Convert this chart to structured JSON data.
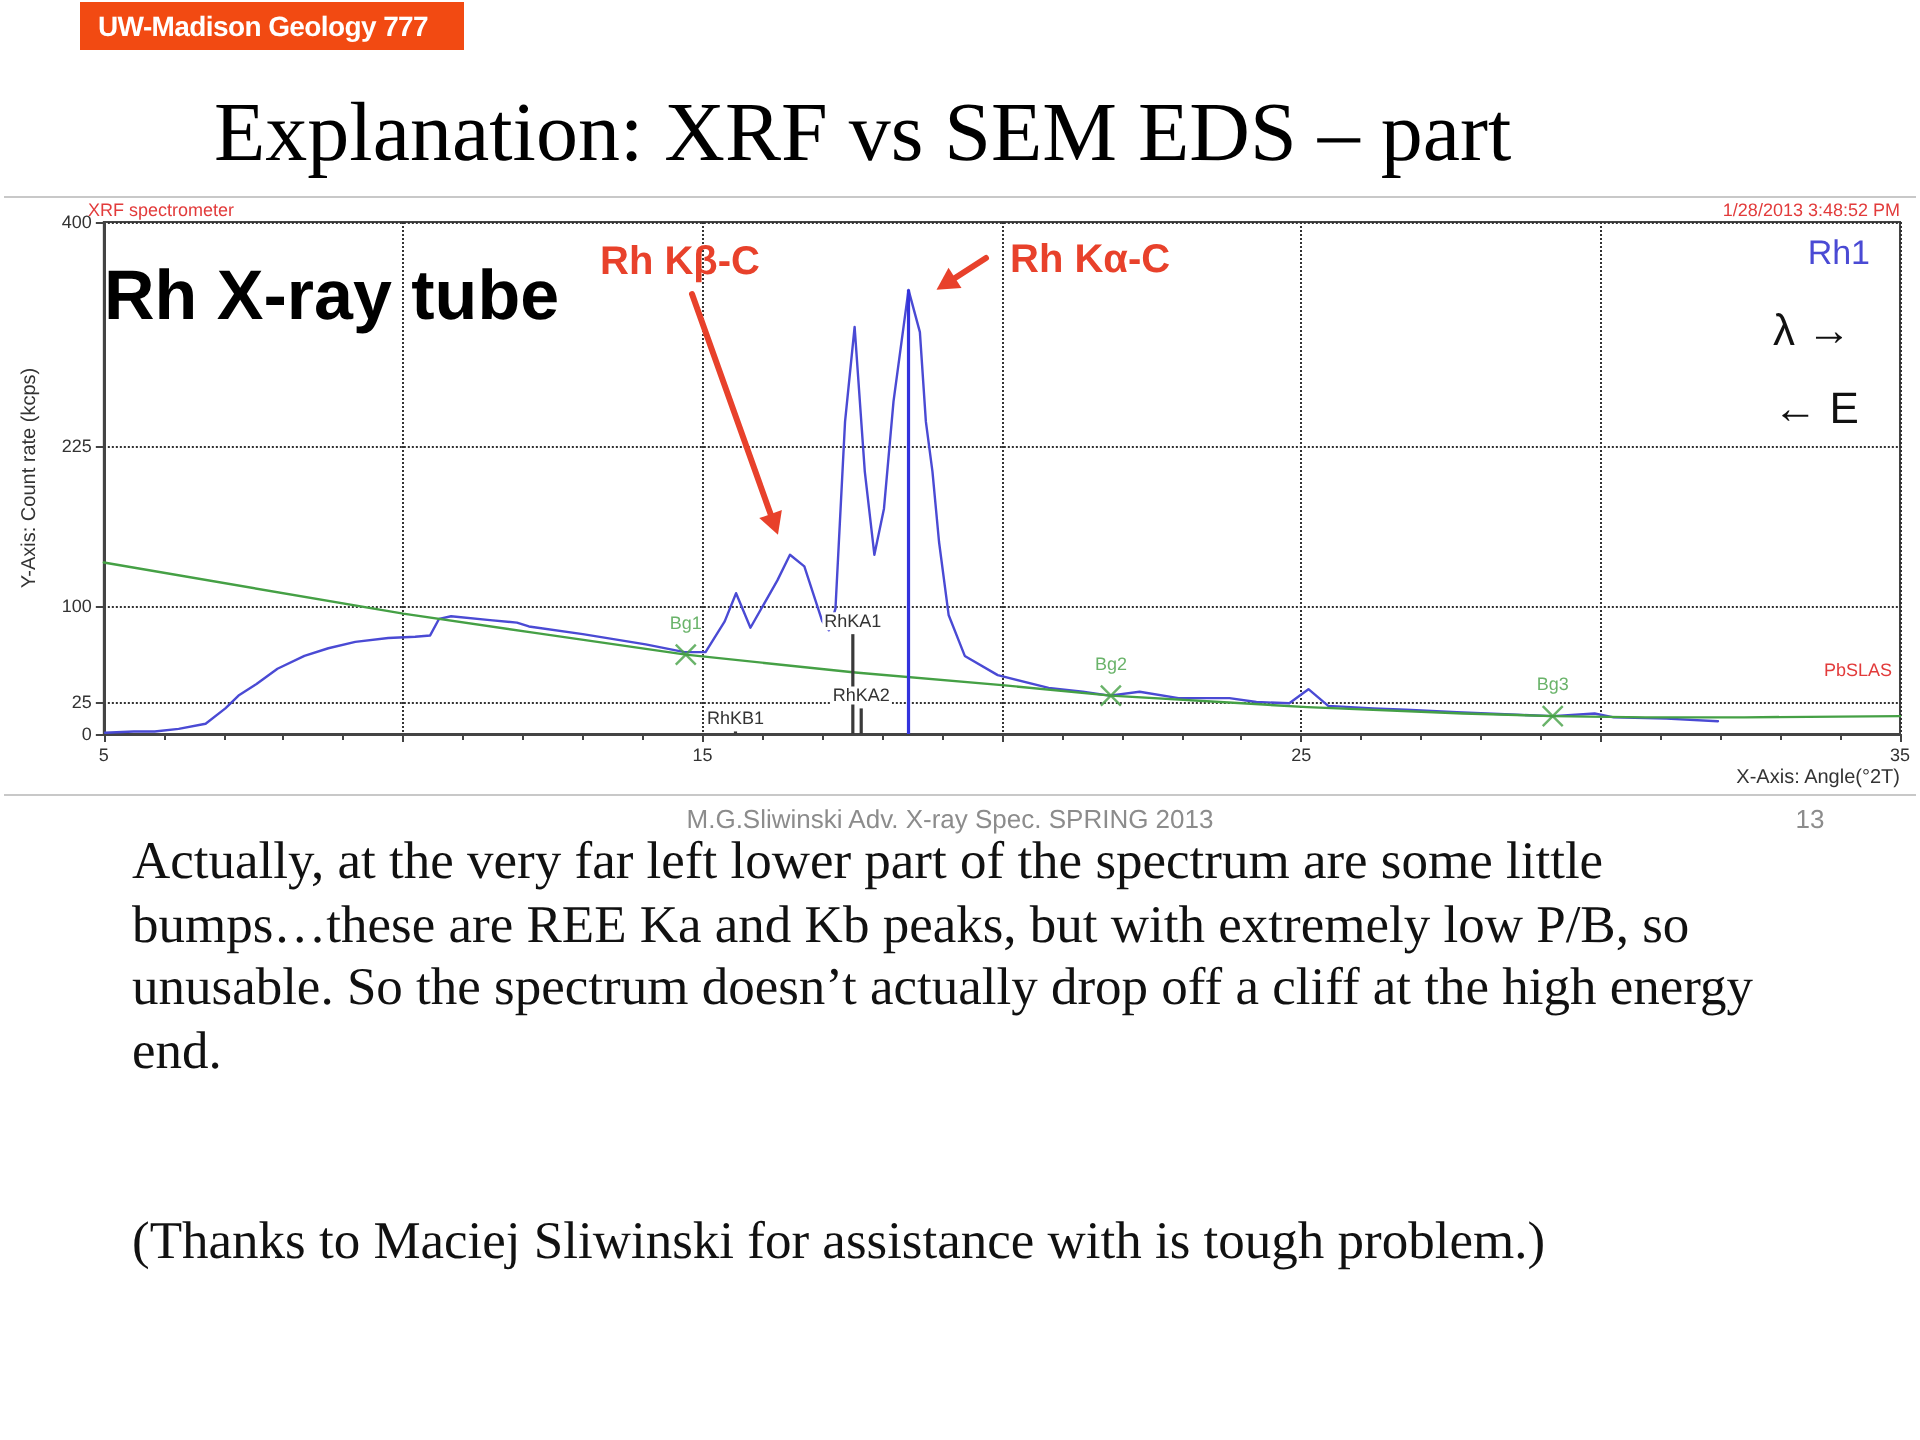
{
  "chart_data": {
    "type": "line",
    "title": "Explanation: XRF vs SEM EDS – part",
    "xlabel": "X-Axis: Angle(°2T)",
    "ylabel": "Y-Axis: Count rate (kcps)",
    "xlim": [
      5,
      35
    ],
    "xticks": [
      5,
      {
        "value": 10,
        "label": null
      },
      15,
      {
        "value": 20,
        "label": null
      },
      25,
      {
        "value": 30,
        "label": null
      },
      35
    ],
    "ylim": [
      0,
      400
    ],
    "yticks": [
      0,
      25,
      100,
      225,
      400
    ],
    "grid": true,
    "legend": "top right",
    "marker": "none",
    "series": [
      {
        "name": "Rh1",
        "color": "#4a4ad4",
        "x": [
          5.02,
          5.5,
          5.85,
          6.25,
          6.7,
          7.03,
          7.25,
          7.55,
          7.9,
          8.35,
          8.75,
          9.2,
          9.75,
          10.2,
          10.45,
          10.6,
          10.8,
          11.45,
          11.9,
          12.1,
          13.0,
          14.05,
          14.7,
          15.05,
          15.37,
          15.56,
          15.8,
          16.25,
          16.46,
          16.7,
          17.0,
          17.11,
          17.22,
          17.38,
          17.54,
          17.71,
          17.87,
          18.03,
          18.19,
          18.44,
          18.63,
          18.73,
          18.84,
          18.95,
          19.11,
          19.38,
          19.93,
          20.78,
          21.35,
          21.8,
          22.3,
          22.95,
          23.8,
          24.25,
          24.8,
          25.12,
          25.45,
          26.2,
          26.75,
          27.6,
          28.6,
          29.2,
          29.9,
          30.22,
          31.1,
          31.96
        ],
        "values": [
          1,
          2,
          2,
          4,
          8,
          20,
          30,
          39,
          51,
          61,
          67,
          72,
          75,
          76,
          77,
          90,
          92,
          89,
          87,
          84,
          78,
          70,
          64,
          64,
          88,
          110,
          83,
          120,
          140,
          131,
          88,
          81,
          98,
          244,
          318,
          205,
          140,
          176,
          260,
          347,
          314,
          244,
          205,
          150,
          93,
          61,
          46,
          36,
          33,
          30,
          33,
          28,
          28,
          25,
          24,
          35,
          22,
          20,
          19,
          17,
          15,
          14,
          16,
          13,
          12,
          10
        ]
      },
      {
        "color": "#45a045",
        "x": [
          5,
          10,
          12.2,
          14.72,
          17.55,
          20.05,
          21.82,
          25.1,
          27.7,
          29.2,
          30.75,
          32.4,
          35
        ],
        "values": [
          134,
          94,
          79,
          62,
          48,
          38,
          30,
          21,
          16,
          14,
          13,
          13,
          14
        ]
      },
      {
        "type": "scatter",
        "marker": "cross",
        "color": "#45a045",
        "x": [
          14.72,
          21.82,
          29.2
        ],
        "values": [
          62,
          30,
          14
        ],
        "value_labels": [
          "Bg1",
          "Bg2",
          "Bg3"
        ]
      },
      {
        "type": "bar",
        "colors": [
          "#3a3a3a",
          "#3a3a3a",
          "#3a3a3a",
          "#3333dd"
        ],
        "x": [
          15.55,
          17.51,
          17.65,
          18.44
        ],
        "values": [
          2,
          78,
          20,
          347
        ],
        "value_labels": [
          "RhKB1",
          "RhKA1",
          "RhKA2",
          null
        ]
      }
    ],
    "annotations": [
      "UW-Madison Geology 777",
      "XRF spectrometer",
      "1/28/2013 3:48:52 PM",
      "Rh X-ray tube",
      "Rh Kβ-C",
      "Rh Kα-C",
      "λ →",
      "← E",
      "PbSLAS",
      "M.G.Sliwinski Adv. X-ray Spec. SPRING 2013",
      "13",
      "Actually, at the very far left lower part of the spectrum are some little bumps…these are REE Ka and Kb peaks, but with extremely low P/B, so unusable. So the spectrum doesn’t actually drop off a cliff at the high energy end.",
      "(Thanks to Maciej Sliwinski for assistance with is tough problem.)"
    ]
  }
}
